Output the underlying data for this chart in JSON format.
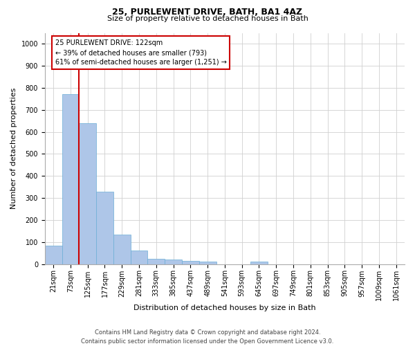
{
  "title1": "25, PURLEWENT DRIVE, BATH, BA1 4AZ",
  "title2": "Size of property relative to detached houses in Bath",
  "xlabel": "Distribution of detached houses by size in Bath",
  "ylabel": "Number of detached properties",
  "bin_labels": [
    "21sqm",
    "73sqm",
    "125sqm",
    "177sqm",
    "229sqm",
    "281sqm",
    "333sqm",
    "385sqm",
    "437sqm",
    "489sqm",
    "541sqm",
    "593sqm",
    "645sqm",
    "697sqm",
    "749sqm",
    "801sqm",
    "853sqm",
    "905sqm",
    "957sqm",
    "1009sqm",
    "1061sqm"
  ],
  "bar_values": [
    83,
    771,
    641,
    330,
    133,
    60,
    23,
    20,
    15,
    10,
    0,
    0,
    11,
    0,
    0,
    0,
    0,
    0,
    0,
    0,
    0
  ],
  "bar_color": "#aec6e8",
  "bar_edge_color": "#6baed6",
  "vline_color": "#cc0000",
  "vline_x_index": 2,
  "ylim": [
    0,
    1050
  ],
  "yticks": [
    0,
    100,
    200,
    300,
    400,
    500,
    600,
    700,
    800,
    900,
    1000
  ],
  "annotation_text": "25 PURLEWENT DRIVE: 122sqm\n← 39% of detached houses are smaller (793)\n61% of semi-detached houses are larger (1,251) →",
  "annotation_box_color": "#cc0000",
  "footer1": "Contains HM Land Registry data © Crown copyright and database right 2024.",
  "footer2": "Contains public sector information licensed under the Open Government Licence v3.0.",
  "title1_fontsize": 9,
  "title2_fontsize": 8,
  "xlabel_fontsize": 8,
  "ylabel_fontsize": 8,
  "tick_fontsize": 7,
  "footer_fontsize": 6,
  "annot_fontsize": 7
}
